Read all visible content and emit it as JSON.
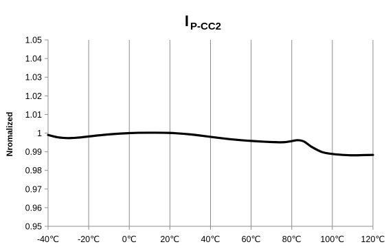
{
  "chart_data": {
    "type": "line",
    "title_main": "I",
    "title_sub": "P-CC2",
    "xlabel": "",
    "ylabel": "Nromalized",
    "xlim": [
      -40,
      120
    ],
    "ylim": [
      0.95,
      1.05
    ],
    "x_ticks": [
      -40,
      -20,
      0,
      20,
      40,
      60,
      80,
      100,
      120
    ],
    "x_tick_labels": [
      "-40℃",
      "-20℃",
      "0℃",
      "20℃",
      "40℃",
      "60℃",
      "80℃",
      "100℃",
      "120℃"
    ],
    "y_ticks": [
      0.95,
      0.96,
      0.97,
      0.98,
      0.99,
      1,
      1.01,
      1.02,
      1.03,
      1.04,
      1.05
    ],
    "y_tick_labels": [
      "0.95",
      "0.96",
      "0.97",
      "0.98",
      "0.99",
      "1",
      "1.01",
      "1.02",
      "1.03",
      "1.04",
      "1.05"
    ],
    "grid": {
      "vertical": true,
      "horizontal": false
    },
    "legend": "none",
    "series": [
      {
        "color": "#000000",
        "x": [
          -40,
          -35,
          -30,
          -25,
          -20,
          -10,
          0,
          10,
          20,
          30,
          40,
          50,
          60,
          70,
          76,
          80,
          83,
          86,
          90,
          95,
          100,
          105,
          110,
          115,
          120
        ],
        "y": [
          0.999,
          0.9977,
          0.9973,
          0.9976,
          0.9982,
          0.9993,
          1.0,
          1.0002,
          1.0001,
          0.9993,
          0.998,
          0.9967,
          0.9958,
          0.9952,
          0.9951,
          0.9957,
          0.9962,
          0.9955,
          0.9925,
          0.9898,
          0.9888,
          0.9883,
          0.9881,
          0.9882,
          0.9883
        ]
      }
    ]
  }
}
